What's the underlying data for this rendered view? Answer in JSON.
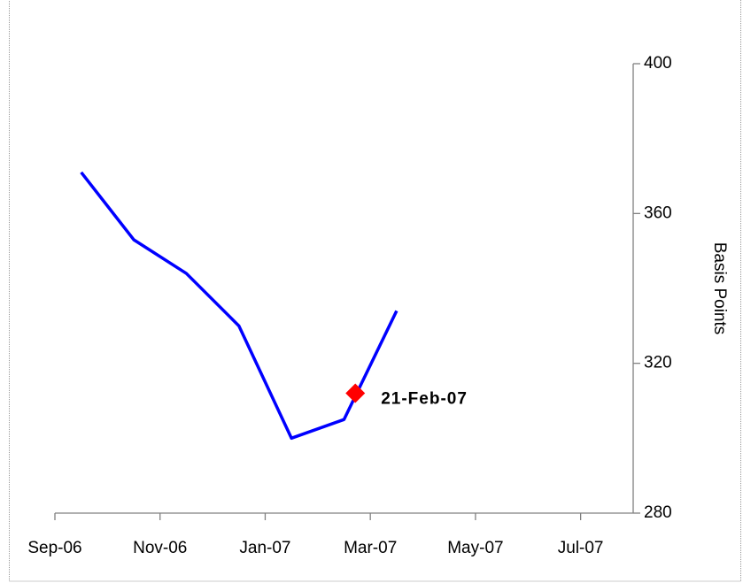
{
  "chart_data": {
    "type": "line",
    "y_axis_label": "Basis Points",
    "categories": [
      "Sep-06",
      null,
      "Nov-06",
      null,
      "Jan-07",
      null,
      "Mar-07",
      null,
      "May-07",
      null,
      "Jul-07"
    ],
    "series": [
      {
        "color": "#0000ff",
        "values": [
          371,
          353,
          344,
          330,
          300,
          305,
          334,
          null,
          null,
          null,
          null
        ]
      }
    ],
    "marker": {
      "label": "21-Feb-07",
      "value": 312,
      "color": "#ff0000"
    },
    "ylim": [
      280,
      400
    ],
    "yticks": [
      280,
      320,
      360,
      400
    ],
    "y_axis_side": "right"
  }
}
